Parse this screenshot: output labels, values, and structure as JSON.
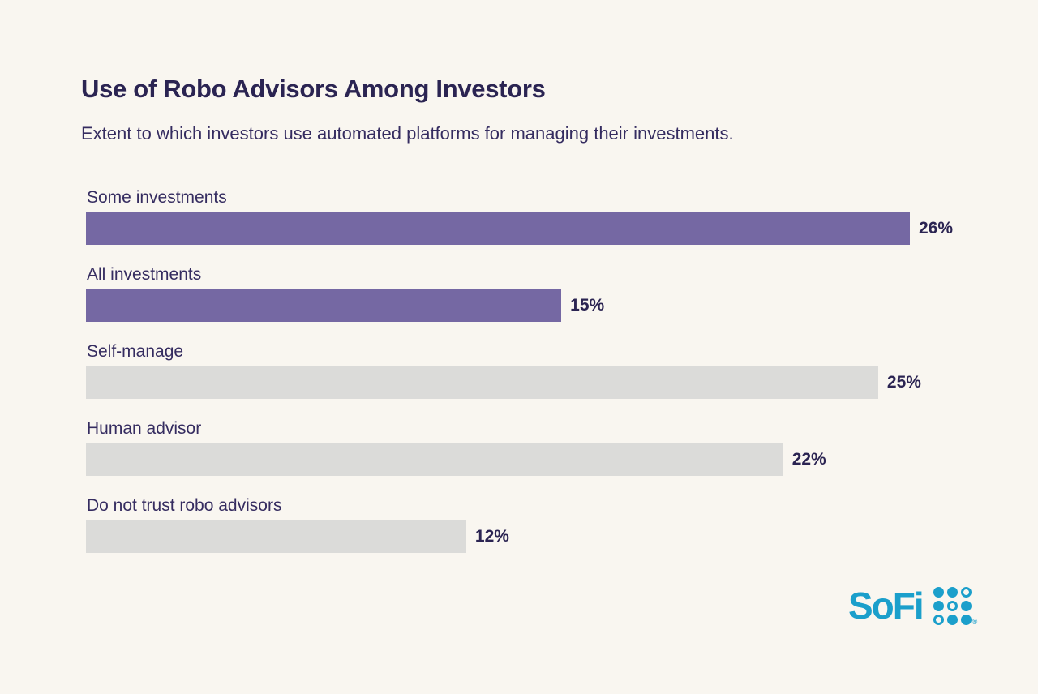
{
  "header": {
    "title": "Use of Robo Advisors Among Investors",
    "subtitle": "Extent to which investors use automated platforms for managing their investments."
  },
  "chart_data": {
    "type": "bar",
    "orientation": "horizontal",
    "title": "Use of Robo Advisors Among Investors",
    "categories": [
      "Some investments",
      "All investments",
      "Self-manage",
      "Human advisor",
      "Do not trust robo advisors"
    ],
    "values": [
      26,
      15,
      25,
      22,
      12
    ],
    "value_labels": [
      "26%",
      "15%",
      "25%",
      "22%",
      "12%"
    ],
    "bar_colors": [
      "#7568A3",
      "#7568A3",
      "#DBDBD9",
      "#DBDBD9",
      "#DBDBD9"
    ],
    "xlim": [
      0,
      26
    ],
    "grid": false,
    "legend": false,
    "value_label_position": "right-of-bar"
  },
  "colors": {
    "background": "#F9F6F0",
    "title_text": "#2B2452",
    "label_text": "#352C60",
    "bar_purple": "#7568A3",
    "bar_gray": "#DBDBD9",
    "sofi_teal": "#1B9FCB"
  },
  "footer": {
    "brand": "SoFi",
    "trademark": "®",
    "logo_dots": [
      "filled",
      "filled",
      "ring",
      "filled",
      "ring",
      "filled",
      "ring",
      "filled",
      "filled"
    ]
  }
}
